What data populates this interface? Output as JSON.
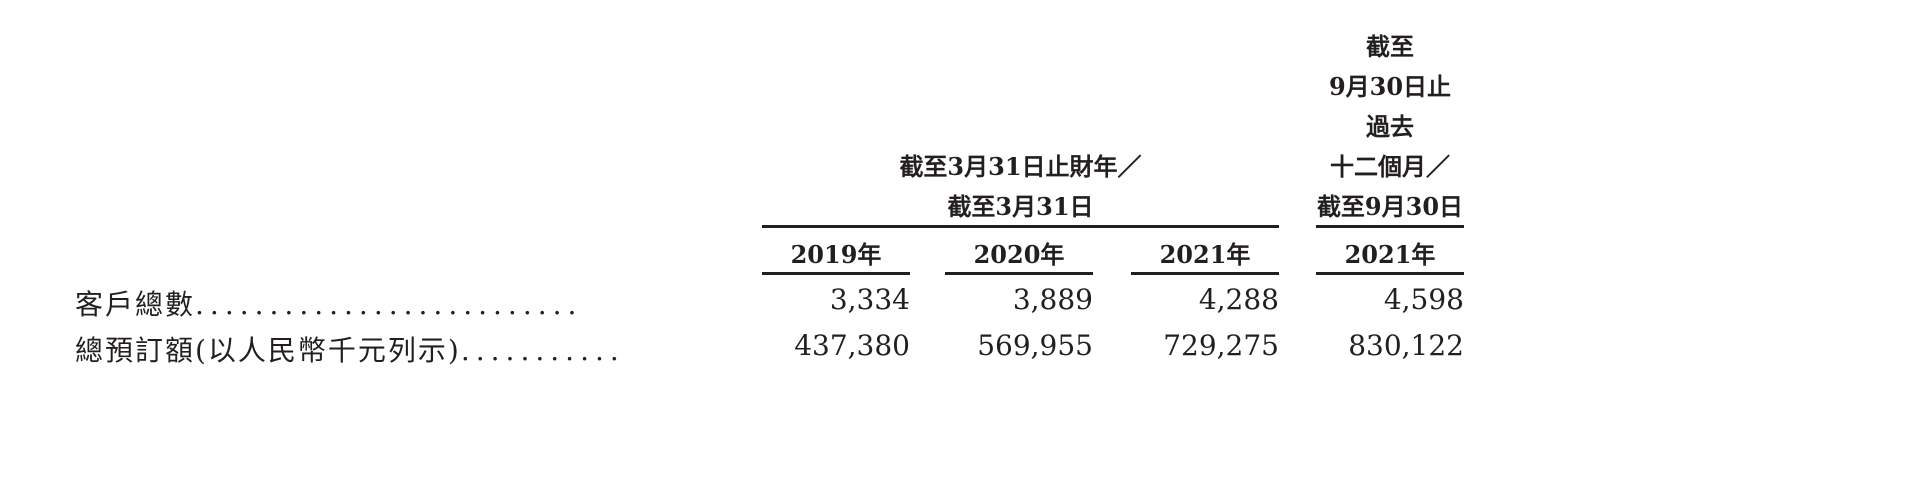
{
  "header": {
    "group_fy": [
      "截至3月31日止財年／",
      "截至3月31日"
    ],
    "group_ltm": [
      "截至",
      "9月30日止",
      "過去",
      "十二個月／",
      "截至9月30日"
    ],
    "years": [
      "2019年",
      "2020年",
      "2021年",
      "2021年"
    ]
  },
  "rows": [
    {
      "label": "客戶總數",
      "leader": "..........................",
      "values": [
        "3,334",
        "3,889",
        "4,288",
        "4,598"
      ]
    },
    {
      "label": "總預訂額(以人民幣千元列示)",
      "leader": "...........",
      "values": [
        "437,380",
        "569,955",
        "729,275",
        "830,122"
      ]
    }
  ]
}
